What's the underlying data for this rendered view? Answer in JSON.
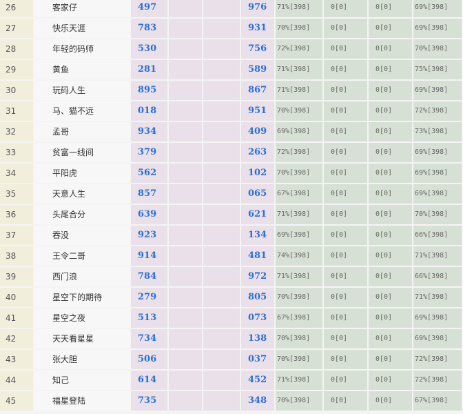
{
  "rows": [
    {
      "rank": "26",
      "name": "客家仔",
      "a": "497",
      "b": "976",
      "p1": "71%[398]",
      "p2": "0[0]",
      "p3": "0[0]",
      "p4": "69%[398]"
    },
    {
      "rank": "27",
      "name": "快乐天涯",
      "a": "783",
      "b": "931",
      "p1": "70%[398]",
      "p2": "0[0]",
      "p3": "0[0]",
      "p4": "69%[398]"
    },
    {
      "rank": "28",
      "name": "年轻的码师",
      "a": "530",
      "b": "756",
      "p1": "72%[398]",
      "p2": "0[0]",
      "p3": "0[0]",
      "p4": "70%[398]"
    },
    {
      "rank": "29",
      "name": "黄鱼",
      "a": "281",
      "b": "589",
      "p1": "71%[398]",
      "p2": "0[0]",
      "p3": "0[0]",
      "p4": "75%[398]"
    },
    {
      "rank": "30",
      "name": "玩码人生",
      "a": "895",
      "b": "867",
      "p1": "71%[398]",
      "p2": "0[0]",
      "p3": "0[0]",
      "p4": "69%[398]"
    },
    {
      "rank": "31",
      "name": "马、猫不远",
      "a": "018",
      "b": "951",
      "p1": "70%[398]",
      "p2": "0[0]",
      "p3": "0[0]",
      "p4": "72%[398]"
    },
    {
      "rank": "32",
      "name": "孟哥",
      "a": "934",
      "b": "409",
      "p1": "69%[398]",
      "p2": "0[0]",
      "p3": "0[0]",
      "p4": "73%[398]"
    },
    {
      "rank": "33",
      "name": "贫富一线间",
      "a": "379",
      "b": "263",
      "p1": "72%[398]",
      "p2": "0[0]",
      "p3": "0[0]",
      "p4": "69%[398]"
    },
    {
      "rank": "34",
      "name": "平阳虎",
      "a": "562",
      "b": "102",
      "p1": "70%[398]",
      "p2": "0[0]",
      "p3": "0[0]",
      "p4": "69%[398]"
    },
    {
      "rank": "35",
      "name": "天意人生",
      "a": "857",
      "b": "065",
      "p1": "67%[398]",
      "p2": "0[0]",
      "p3": "0[0]",
      "p4": "69%[398]"
    },
    {
      "rank": "36",
      "name": "头尾合分",
      "a": "639",
      "b": "621",
      "p1": "71%[398]",
      "p2": "0[0]",
      "p3": "0[0]",
      "p4": "70%[398]"
    },
    {
      "rank": "37",
      "name": "吞没",
      "a": "923",
      "b": "134",
      "p1": "69%[398]",
      "p2": "0[0]",
      "p3": "0[0]",
      "p4": "66%[398]"
    },
    {
      "rank": "38",
      "name": "王令二哥",
      "a": "914",
      "b": "481",
      "p1": "74%[398]",
      "p2": "0[0]",
      "p3": "0[0]",
      "p4": "71%[398]"
    },
    {
      "rank": "39",
      "name": "西门浪",
      "a": "784",
      "b": "972",
      "p1": "71%[398]",
      "p2": "0[0]",
      "p3": "0[0]",
      "p4": "66%[398]"
    },
    {
      "rank": "40",
      "name": "星空下的期待",
      "a": "279",
      "b": "805",
      "p1": "70%[398]",
      "p2": "0[0]",
      "p3": "0[0]",
      "p4": "71%[398]"
    },
    {
      "rank": "41",
      "name": "星空之夜",
      "a": "513",
      "b": "073",
      "p1": "67%[398]",
      "p2": "0[0]",
      "p3": "0[0]",
      "p4": "69%[398]"
    },
    {
      "rank": "42",
      "name": "天天看星星",
      "a": "734",
      "b": "138",
      "p1": "70%[398]",
      "p2": "0[0]",
      "p3": "0[0]",
      "p4": "69%[398]"
    },
    {
      "rank": "43",
      "name": "张大胆",
      "a": "506",
      "b": "037",
      "p1": "70%[398]",
      "p2": "0[0]",
      "p3": "0[0]",
      "p4": "72%[398]"
    },
    {
      "rank": "44",
      "name": "知己",
      "a": "614",
      "b": "452",
      "p1": "71%[398]",
      "p2": "0[0]",
      "p3": "0[0]",
      "p4": "72%[398]"
    },
    {
      "rank": "45",
      "name": "福星登陆",
      "a": "735",
      "b": "348",
      "p1": "70%[398]",
      "p2": "0[0]",
      "p3": "0[0]",
      "p4": "67%[398]"
    }
  ]
}
